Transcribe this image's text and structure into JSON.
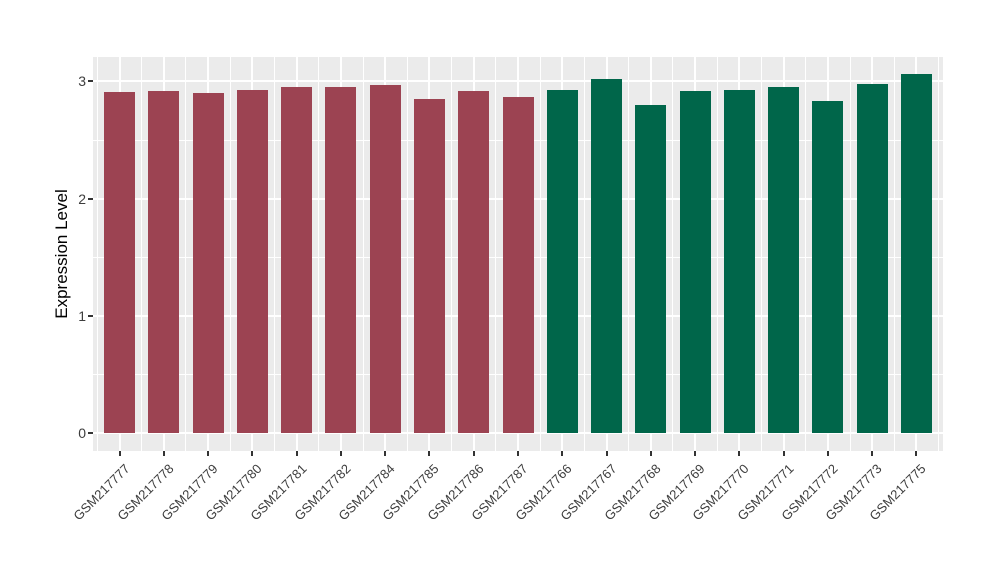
{
  "chart_data": {
    "type": "bar",
    "title": "",
    "xlabel": "",
    "ylabel": "Expression Level",
    "categories": [
      "GSM217777",
      "GSM217778",
      "GSM217779",
      "GSM217780",
      "GSM217781",
      "GSM217782",
      "GSM217784",
      "GSM217785",
      "GSM217786",
      "GSM217787",
      "GSM217766",
      "GSM217767",
      "GSM217768",
      "GSM217769",
      "GSM217770",
      "GSM217771",
      "GSM217772",
      "GSM217773",
      "GSM217775"
    ],
    "values": [
      2.91,
      2.92,
      2.9,
      2.93,
      2.95,
      2.95,
      2.97,
      2.85,
      2.92,
      2.87,
      2.93,
      3.02,
      2.8,
      2.92,
      2.93,
      2.95,
      2.83,
      2.98,
      3.06
    ],
    "bar_group": [
      "g1",
      "g1",
      "g1",
      "g1",
      "g1",
      "g1",
      "g1",
      "g1",
      "g1",
      "g1",
      "g2",
      "g2",
      "g2",
      "g2",
      "g2",
      "g2",
      "g2",
      "g2",
      "g2"
    ],
    "group_colors": {
      "g1": "#9C4352",
      "g2": "#00664A"
    },
    "y_major_ticks": [
      0,
      1,
      2,
      3
    ],
    "y_minor_ticks": [
      0.5,
      1.5,
      2.5
    ],
    "ylim": [
      0,
      3.21
    ],
    "x_tick_angle": -45,
    "grid": true,
    "legend_position": "none",
    "colors": {
      "panel_bg": "#EBEBEB",
      "grid": "#FFFFFF",
      "tick_mark": "#333333",
      "axis_text": "#3D3D3D",
      "axis_title": "#000000",
      "figure_bg": "#FFFFFF"
    }
  }
}
